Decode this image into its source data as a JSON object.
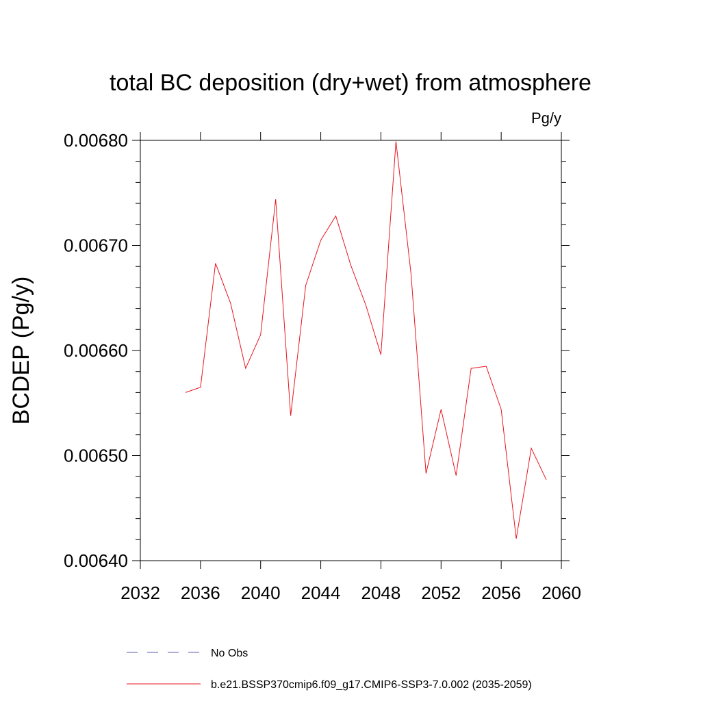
{
  "chart_data": {
    "type": "line",
    "title": "total BC deposition (dry+wet) from atmosphere",
    "units_label": "Pg/y",
    "ylabel": "BCDEP  (Pg/y)",
    "xlabel": "",
    "xlim": [
      2032,
      2060
    ],
    "ylim": [
      0.0064,
      0.0068
    ],
    "x_ticks": [
      2032,
      2036,
      2040,
      2044,
      2048,
      2052,
      2056,
      2060
    ],
    "x_tick_labels": [
      "2032",
      "2036",
      "2040",
      "2044",
      "2048",
      "2052",
      "2056",
      "2060"
    ],
    "y_ticks": [
      0.0064,
      0.0065,
      0.0066,
      0.0067,
      0.0068
    ],
    "y_tick_labels": [
      "0.00640",
      "0.00650",
      "0.00660",
      "0.00670",
      "0.00680"
    ],
    "grid": false,
    "legend_position": "bottom",
    "series": [
      {
        "name": "No Obs",
        "color": "#5a5aa8",
        "style": "dashed",
        "x": [],
        "y": []
      },
      {
        "name": "b.e21.BSSP370cmip6.f09_g17.CMIP6-SSP3-7.0.002 (2035-2059)",
        "color": "#e8141e",
        "style": "solid",
        "x": [
          2035,
          2036,
          2037,
          2038,
          2039,
          2040,
          2041,
          2042,
          2043,
          2044,
          2045,
          2046,
          2047,
          2048,
          2049,
          2050,
          2051,
          2052,
          2053,
          2054,
          2055,
          2056,
          2057,
          2058,
          2059
        ],
        "y": [
          0.00656,
          0.006565,
          0.006683,
          0.006645,
          0.006583,
          0.006615,
          0.006744,
          0.006538,
          0.006662,
          0.006705,
          0.006728,
          0.006681,
          0.006643,
          0.006596,
          0.006799,
          0.006673,
          0.006483,
          0.006544,
          0.006481,
          0.006583,
          0.006585,
          0.006544,
          0.006421,
          0.006507,
          0.006477
        ]
      }
    ]
  }
}
